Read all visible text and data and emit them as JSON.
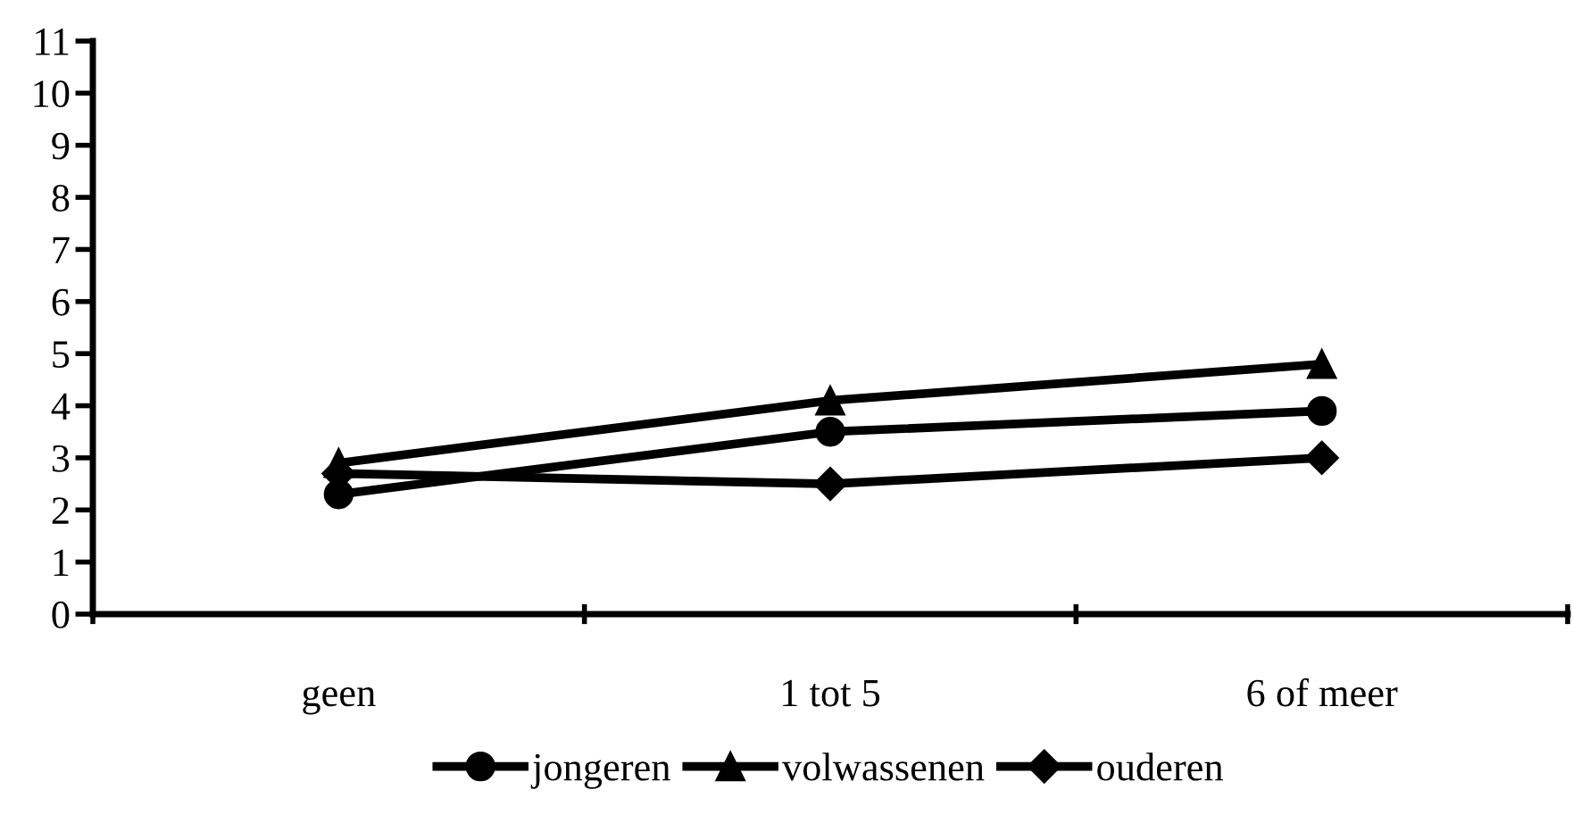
{
  "chart_data": {
    "type": "line",
    "categories": [
      "geen",
      "1 tot 5",
      "6 of meer"
    ],
    "series": [
      {
        "name": "jongeren",
        "color": "#000000",
        "marker": "circle",
        "values": [
          2.3,
          3.5,
          3.9
        ]
      },
      {
        "name": "volwassenen",
        "color": "#000000",
        "marker": "triangle",
        "values": [
          2.9,
          4.1,
          4.8
        ]
      },
      {
        "name": "ouderen",
        "color": "#000000",
        "marker": "diamond",
        "values": [
          2.7,
          2.5,
          3.0
        ]
      }
    ],
    "ylim": [
      0,
      11
    ],
    "yticks": [
      0,
      1,
      2,
      3,
      4,
      5,
      6,
      7,
      8,
      9,
      10,
      11
    ],
    "grid": false,
    "legend": "bottom",
    "line_style": "solid"
  }
}
